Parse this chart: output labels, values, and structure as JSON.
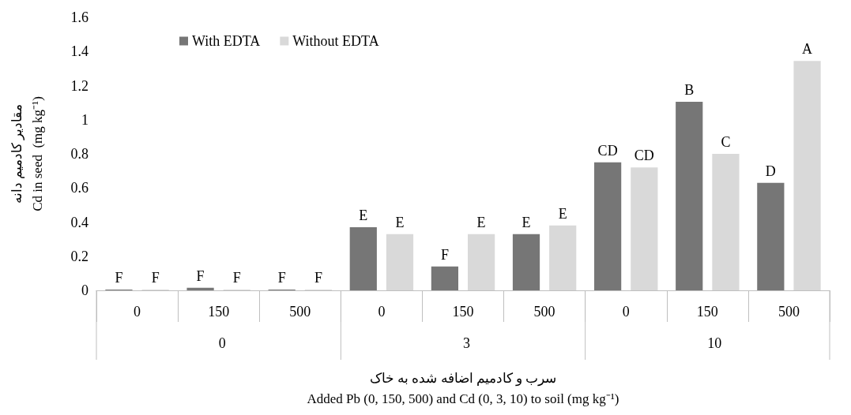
{
  "chart_data": {
    "type": "bar",
    "ylabel": "مقادیر کادمیم دانه\nCd in seed  (mg kg⁻¹)",
    "xlabel": "سرب و کادمیم اضافه شده به خاک\nAdded Pb (0, 150, 500) and Cd (0, 3, 10) to soil (mg kg⁻¹)",
    "categories": [
      "0",
      "150",
      "500",
      "0",
      "150",
      "500",
      "0",
      "150",
      "500"
    ],
    "annotations": [
      "0",
      "3",
      "10"
    ],
    "series": [
      {
        "name": "With EDTA",
        "color": "#767676",
        "values": [
          0,
          0.015,
          0.005,
          0.37,
          0.14,
          0.33,
          0.75,
          1.105,
          0.63
        ],
        "value_labels": [
          "F",
          "F",
          "F",
          "E",
          "F",
          "E",
          "CD",
          "B",
          "D"
        ]
      },
      {
        "name": "Without EDTA",
        "color": "#d9d9d9",
        "values": [
          0,
          0,
          0,
          0.33,
          0.33,
          0.38,
          0.72,
          0.8,
          1.345
        ],
        "value_labels": [
          "F",
          "F",
          "F",
          "E",
          "E",
          "E",
          "CD",
          "C",
          "A"
        ]
      }
    ],
    "ylim": [
      0,
      1.6
    ],
    "yticks": [
      0,
      0.2,
      0.4,
      0.6,
      0.8,
      1,
      1.2,
      1.4,
      1.6
    ],
    "grid": false,
    "legend": "top left"
  }
}
